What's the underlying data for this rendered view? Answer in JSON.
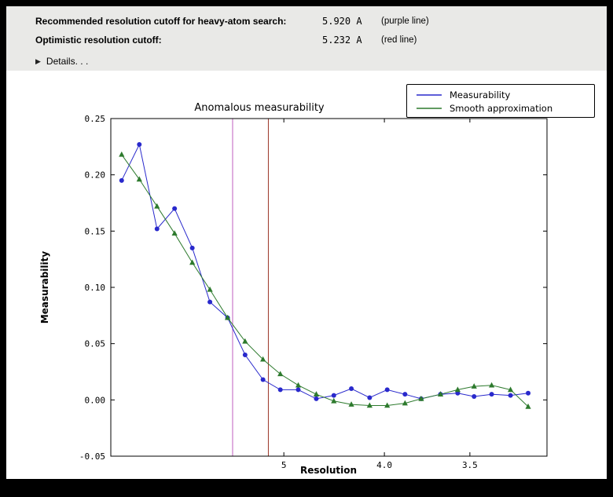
{
  "window": {
    "frame_color": "#000000",
    "panel_background": "#e9e9e7"
  },
  "header": {
    "rows": [
      {
        "label": "Recommended resolution cutoff for heavy-atom search:",
        "value": "5.920 A",
        "note": "(purple line)"
      },
      {
        "label": "Optimistic resolution cutoff:",
        "value": "5.232 A",
        "note": "(red line)"
      }
    ],
    "details_label": "Details. . ."
  },
  "chart_data": {
    "type": "line",
    "title": "Anomalous measurability",
    "xlabel": "Resolution",
    "ylabel": "Measurability",
    "x_scale": "1/d^2, resolution in Angstrom decreasing left to right",
    "x_range_d": [
      28.0,
      3.18
    ],
    "x_tick_labels": [
      "5",
      "4.0",
      "3.5"
    ],
    "x_tick_values_d": [
      5.0,
      4.0,
      3.5
    ],
    "ylim": [
      -0.05,
      0.25
    ],
    "y_tick_labels": [
      "0.25",
      "0.20",
      "0.15",
      "0.10",
      "0.05",
      "0.00",
      "-0.05"
    ],
    "y_tick_values": [
      0.25,
      0.2,
      0.15,
      0.1,
      0.05,
      0.0,
      -0.05
    ],
    "resolution_d": [
      16.44,
      11.43,
      9.28,
      8.02,
      7.16,
      6.53,
      6.04,
      5.65,
      5.32,
      5.05,
      4.81,
      4.6,
      4.42,
      4.26,
      4.11,
      3.98,
      3.86,
      3.76,
      3.65,
      3.56,
      3.48,
      3.4,
      3.32,
      3.25
    ],
    "series": [
      {
        "name": "Measurability",
        "color": "#2929cc",
        "marker": "circle",
        "values": [
          0.195,
          0.227,
          0.152,
          0.17,
          0.135,
          0.087,
          0.073,
          0.04,
          0.018,
          0.009,
          0.009,
          0.001,
          0.004,
          0.01,
          0.002,
          0.009,
          0.005,
          0.001,
          0.005,
          0.006,
          0.003,
          0.005,
          0.004,
          0.006
        ]
      },
      {
        "name": "Smooth approximation",
        "color": "#2d7a2d",
        "marker": "triangle",
        "values": [
          0.218,
          0.196,
          0.172,
          0.148,
          0.122,
          0.098,
          0.073,
          0.052,
          0.036,
          0.023,
          0.013,
          0.005,
          -0.001,
          -0.004,
          -0.005,
          -0.005,
          -0.003,
          0.001,
          0.005,
          0.009,
          0.012,
          0.013,
          0.009,
          -0.006
        ]
      }
    ],
    "vlines": [
      {
        "name": "recommended-cutoff",
        "d": 5.92,
        "color": "#c05fc0",
        "label": "purple line"
      },
      {
        "name": "optimistic-cutoff",
        "d": 5.232,
        "color": "#9c3428",
        "label": "red line"
      }
    ],
    "legend": {
      "position": "top-right",
      "entries": [
        "Measurability",
        "Smooth approximation"
      ]
    }
  }
}
